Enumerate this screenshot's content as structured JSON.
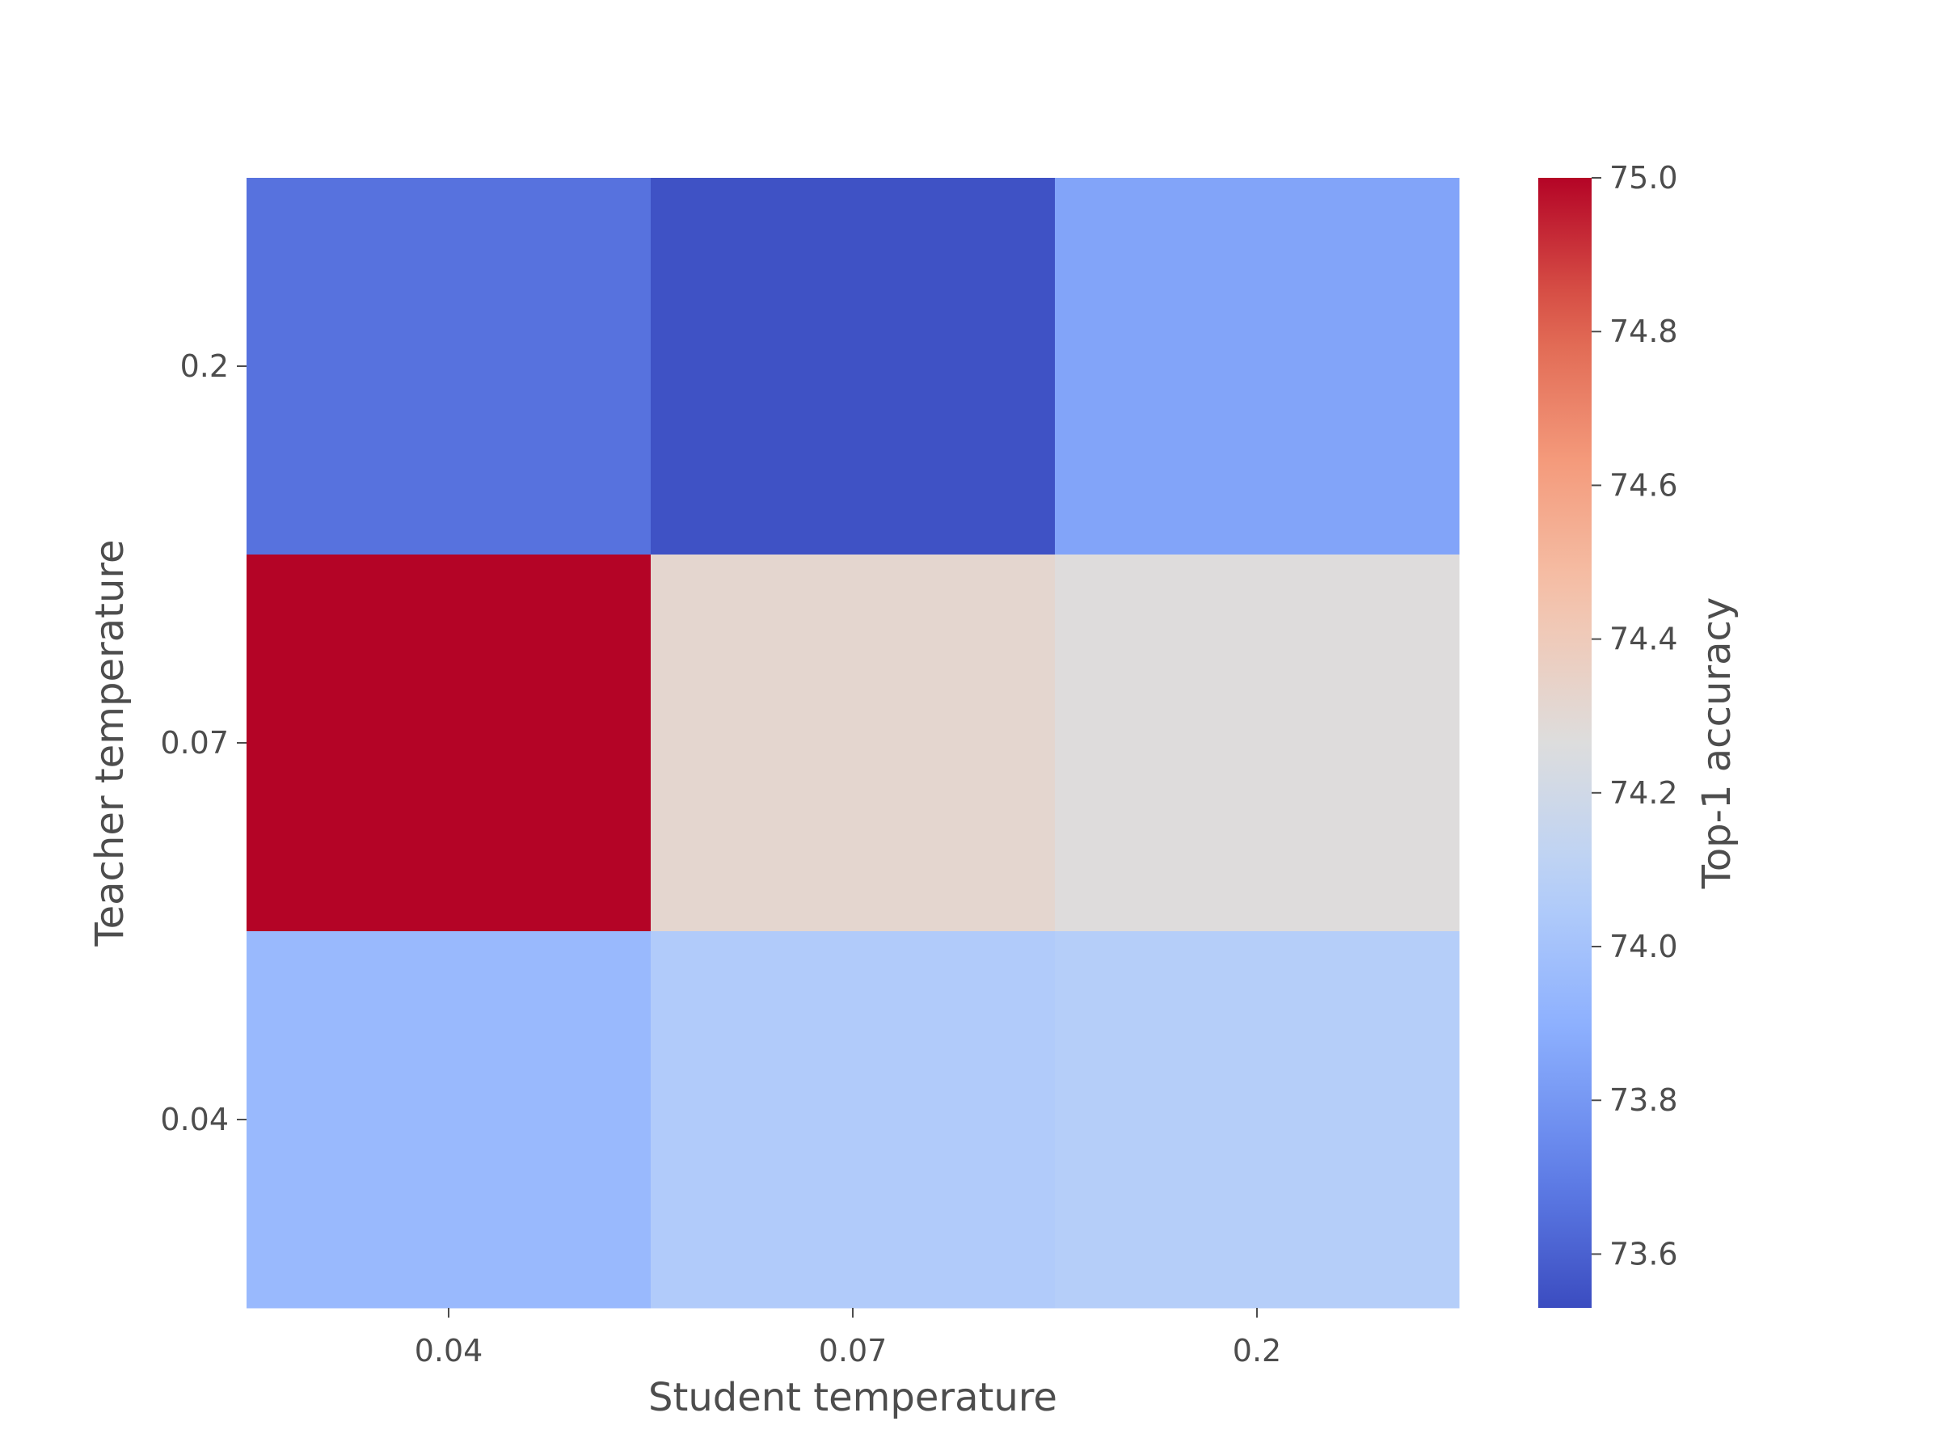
{
  "chart_data": {
    "type": "heatmap",
    "title": "",
    "xlabel": "Student temperature",
    "ylabel": "Teacher temperature",
    "x_categories": [
      "0.04",
      "0.07",
      "0.2"
    ],
    "y_categories": [
      "0.2",
      "0.07",
      "0.04"
    ],
    "values": [
      [
        73.66,
        73.55,
        73.85
      ],
      [
        75.0,
        74.32,
        74.27
      ],
      [
        73.95,
        74.05,
        74.07
      ]
    ],
    "colormap": "coolwarm",
    "colorbar": {
      "label": "Top-1 accuracy",
      "min": 73.53,
      "max": 75.0,
      "ticks": [
        73.6,
        73.8,
        74.0,
        74.2,
        74.4,
        74.6,
        74.8,
        75.0
      ],
      "tick_labels": [
        "73.6",
        "73.8",
        "74.0",
        "74.2",
        "74.4",
        "74.6",
        "74.8",
        "75.0"
      ]
    },
    "grid": false,
    "legend": "none"
  }
}
